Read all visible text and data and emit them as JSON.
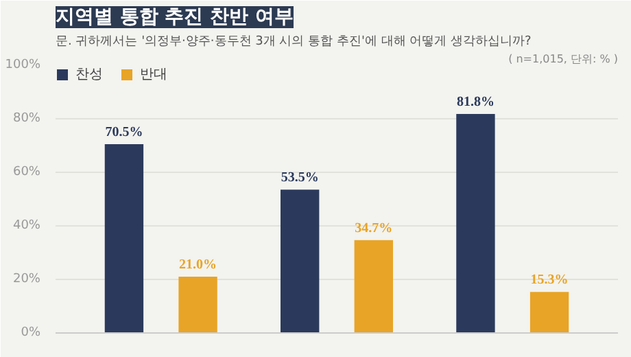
{
  "chart_data": {
    "type": "bar",
    "title": "지역별 통합 추진 찬반 여부",
    "subtitle": "문. 귀하께서는 '의정부·양주·동두천 3개 시의 통합 추진'에 대해 어떻게 생각하십니까?",
    "annotations": [
      "( n=1,015, 단위: % )"
    ],
    "categories": [
      null,
      null,
      null
    ],
    "series": [
      {
        "name": "찬성",
        "color": "#2b3a5c",
        "values": [
          70.5,
          53.5,
          81.8
        ],
        "value_labels": [
          "70.5%",
          "53.5%",
          "81.8%"
        ]
      },
      {
        "name": "반대",
        "color": "#e8a426",
        "values": [
          21.0,
          34.7,
          15.3
        ],
        "value_labels": [
          "21.0%",
          "34.7%",
          "15.3%"
        ]
      }
    ],
    "ylim": [
      0,
      100
    ],
    "yticks": [
      {
        "value": 0,
        "label": "0%"
      },
      {
        "value": 20,
        "label": "20%"
      },
      {
        "value": 40,
        "label": "40%"
      },
      {
        "value": 60,
        "label": "60%"
      },
      {
        "value": 80,
        "label": "80%"
      },
      {
        "value": 100,
        "label": "100%"
      }
    ],
    "grid": "y",
    "legend": "top left"
  }
}
